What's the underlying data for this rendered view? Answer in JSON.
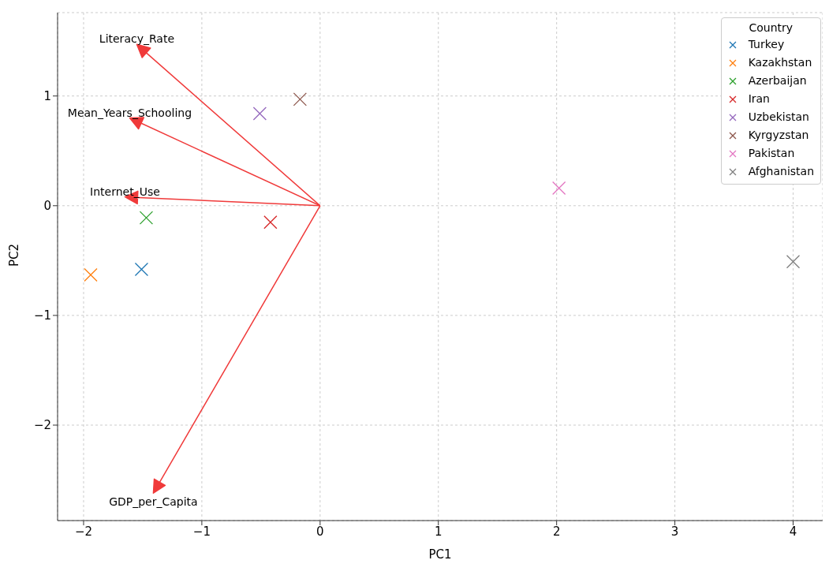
{
  "chart_data": {
    "type": "scatter",
    "xlabel": "PC1",
    "ylabel": "PC2",
    "legend_title": "Country",
    "legend": "top right",
    "grid": true,
    "marker": "cross",
    "xlim": [
      -2.22,
      4.25
    ],
    "xticks": [
      -2,
      -1,
      0,
      1,
      2,
      3,
      4
    ],
    "ylim": [
      -2.87,
      1.76
    ],
    "yticks": [
      -2,
      -1,
      0,
      1
    ],
    "series": [
      {
        "name": "Turkey",
        "color": "#1f77b4",
        "x": [
          -1.51
        ],
        "values": [
          -0.58
        ]
      },
      {
        "name": "Kazakhstan",
        "color": "#ff7f0e",
        "x": [
          -1.94
        ],
        "values": [
          -0.63
        ]
      },
      {
        "name": "Azerbaijan",
        "color": "#2ca02c",
        "x": [
          -1.47
        ],
        "values": [
          -0.11
        ]
      },
      {
        "name": "Iran",
        "color": "#d62728",
        "x": [
          -0.42
        ],
        "values": [
          -0.15
        ]
      },
      {
        "name": "Uzbekistan",
        "color": "#9467bd",
        "x": [
          -0.51
        ],
        "values": [
          0.84
        ]
      },
      {
        "name": "Kyrgyzstan",
        "color": "#8c564b",
        "x": [
          -0.17
        ],
        "values": [
          0.97
        ]
      },
      {
        "name": "Pakistan",
        "color": "#e377c2",
        "x": [
          2.02
        ],
        "values": [
          0.16
        ]
      },
      {
        "name": "Afghanistan",
        "color": "#7f7f7f",
        "x": [
          4.0
        ],
        "values": [
          -0.51
        ]
      },
      {
        "type": "line",
        "marker": "none",
        "name": "Literacy_Rate",
        "color": "#f03a3a",
        "x": [
          0,
          -1.55
        ],
        "values": [
          0,
          1.47
        ]
      },
      {
        "type": "line",
        "marker": "none",
        "name": "Mean_Years_Schooling",
        "color": "#f03a3a",
        "x": [
          0,
          -1.61
        ],
        "values": [
          0,
          0.8
        ]
      },
      {
        "type": "line",
        "marker": "none",
        "name": "Internet_Use",
        "color": "#f03a3a",
        "x": [
          0,
          -1.65
        ],
        "values": [
          0,
          0.08
        ]
      },
      {
        "type": "line",
        "marker": "none",
        "name": "GDP_per_Capita",
        "color": "#f03a3a",
        "x": [
          0,
          -1.41
        ],
        "values": [
          0,
          -2.62
        ]
      }
    ]
  }
}
